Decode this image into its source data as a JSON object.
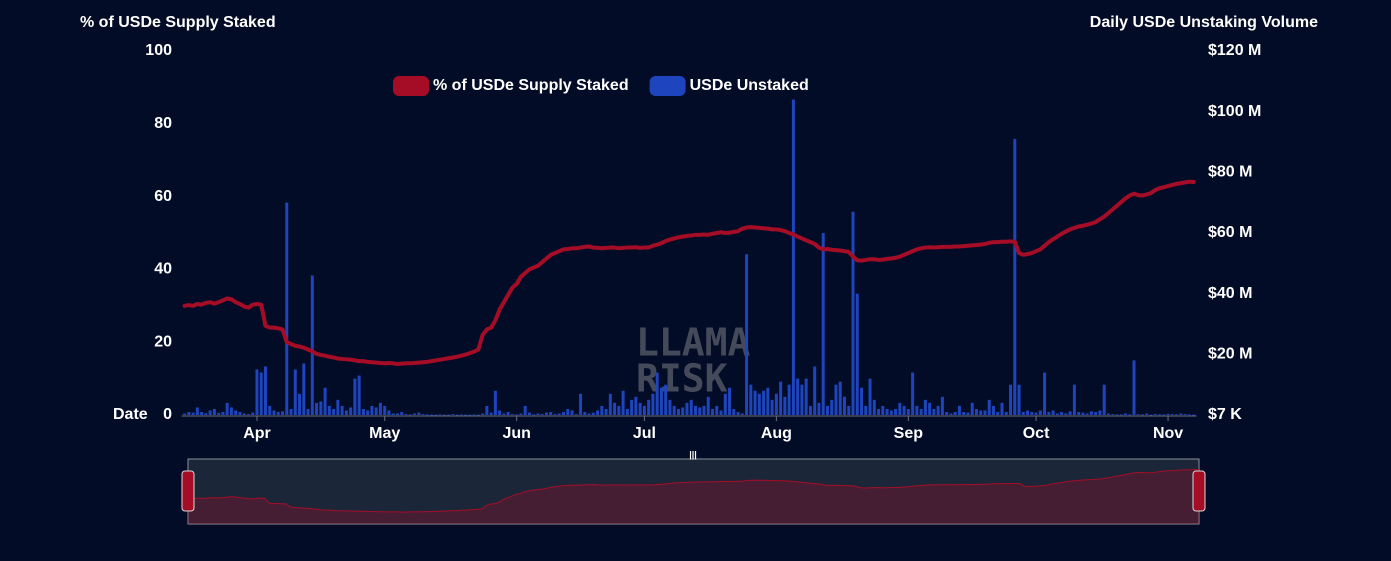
{
  "chart_data": {
    "type": "bar_line",
    "y_title": "% of USDe Supply Staked",
    "y2_title": "Daily USDe Unstaking Volume",
    "x_title": "Date",
    "watermark": [
      "LLAMA",
      "RISK"
    ],
    "navigator_grip": "|||",
    "ylim": [
      0,
      100
    ],
    "yticks": [
      0,
      20,
      40,
      60,
      80,
      100
    ],
    "y2lim": [
      0.007,
      120
    ],
    "y2ticks": [
      {
        "value": 0.007,
        "label": "$7 K"
      },
      {
        "value": 20,
        "label": "$20 M"
      },
      {
        "value": 40,
        "label": "$40 M"
      },
      {
        "value": 60,
        "label": "$60 M"
      },
      {
        "value": 80,
        "label": "$80 M"
      },
      {
        "value": 100,
        "label": "$100 M"
      },
      {
        "value": 120,
        "label": "$120 M"
      }
    ],
    "categories": [
      null,
      null,
      null,
      null,
      null,
      null,
      null,
      null,
      null,
      null,
      null,
      null,
      null,
      null,
      null,
      null,
      null,
      "Apr",
      null,
      null,
      null,
      null,
      null,
      null,
      null,
      null,
      null,
      null,
      null,
      null,
      null,
      null,
      null,
      null,
      null,
      null,
      null,
      null,
      null,
      null,
      null,
      null,
      null,
      null,
      null,
      null,
      null,
      "May",
      null,
      null,
      null,
      null,
      null,
      null,
      null,
      null,
      null,
      null,
      null,
      null,
      null,
      null,
      null,
      null,
      null,
      null,
      null,
      null,
      null,
      null,
      null,
      null,
      null,
      null,
      null,
      null,
      null,
      null,
      "Jun",
      null,
      null,
      null,
      null,
      null,
      null,
      null,
      null,
      null,
      null,
      null,
      null,
      null,
      null,
      null,
      null,
      null,
      null,
      null,
      null,
      null,
      null,
      null,
      null,
      null,
      null,
      null,
      null,
      null,
      "Jul",
      null,
      null,
      null,
      null,
      null,
      null,
      null,
      null,
      null,
      null,
      null,
      null,
      null,
      null,
      null,
      null,
      null,
      null,
      null,
      null,
      null,
      null,
      null,
      null,
      null,
      null,
      null,
      null,
      null,
      null,
      "Aug",
      null,
      null,
      null,
      null,
      null,
      null,
      null,
      null,
      null,
      null,
      null,
      null,
      null,
      null,
      null,
      null,
      null,
      null,
      null,
      null,
      null,
      null,
      null,
      null,
      null,
      null,
      null,
      null,
      null,
      null,
      "Sep",
      null,
      null,
      null,
      null,
      null,
      null,
      null,
      null,
      null,
      null,
      null,
      null,
      null,
      null,
      null,
      null,
      null,
      null,
      null,
      null,
      null,
      null,
      null,
      null,
      null,
      null,
      null,
      null,
      null,
      "Oct",
      null,
      null,
      null,
      null,
      null,
      null,
      null,
      null,
      null,
      null,
      null,
      null,
      null,
      null,
      null,
      null,
      null,
      null,
      null,
      null,
      null,
      null,
      null,
      null,
      null,
      null,
      null,
      null,
      null,
      null,
      "Nov",
      null,
      null,
      null,
      null,
      null,
      null
    ],
    "legend": "top",
    "series": [
      {
        "name": "% of USDe Supply Staked",
        "color": "#a50d27",
        "kind": "line",
        "axis": "y",
        "values": [
          30,
          30.2,
          30,
          30.5,
          30.3,
          30.8,
          31,
          30.6,
          31,
          31.5,
          32,
          31.8,
          31,
          30.5,
          29.8,
          29.5,
          30.3,
          30.5,
          30.3,
          24.5,
          24,
          24,
          23.8,
          23.5,
          20,
          19.5,
          19,
          18.8,
          18.5,
          18,
          17.5,
          16.8,
          16.5,
          16.3,
          16,
          15.8,
          15.5,
          15.4,
          15.3,
          15.2,
          15,
          14.8,
          14.8,
          14.6,
          14.5,
          14.4,
          14.3,
          14.2,
          14.3,
          14.2,
          14,
          14.1,
          14.2,
          14.2,
          14.3,
          14.4,
          14.5,
          14.6,
          14.8,
          15,
          15.2,
          15.4,
          15.6,
          15.8,
          16,
          16.3,
          16.6,
          17,
          17.4,
          18,
          22,
          23.5,
          24,
          26,
          29,
          31,
          33,
          35,
          36,
          38,
          39,
          40,
          40.5,
          41,
          42,
          43,
          44,
          44.5,
          45,
          45.5,
          45.6,
          45.8,
          45.8,
          46,
          46.2,
          46.3,
          46,
          45.9,
          45.8,
          45.9,
          46,
          46,
          45.8,
          45.9,
          46,
          46,
          46.1,
          45.9,
          46,
          46,
          46.5,
          46.8,
          47.2,
          47.8,
          48.2,
          48.5,
          48.8,
          49,
          49.2,
          49.3,
          49.5,
          49.5,
          49.6,
          49.5,
          49.8,
          50,
          50.2,
          50,
          50.1,
          50.3,
          50.5,
          51.2,
          51.5,
          51.6,
          51.5,
          51.4,
          51.3,
          51.2,
          51,
          51,
          50.8,
          50.5,
          50,
          49.6,
          49,
          48.5,
          48,
          47.5,
          47,
          46,
          45.5,
          45.6,
          45.4,
          45.3,
          45.2,
          45,
          44.8,
          43.5,
          42.5,
          42.4,
          42.6,
          42.8,
          42.8,
          42.6,
          42.7,
          42.9,
          43,
          43.2,
          43.5,
          44,
          44.5,
          45,
          45.5,
          45.8,
          46,
          46.1,
          46,
          46.1,
          46.2,
          46.2,
          46.2,
          46.3,
          46.3,
          46.4,
          46.5,
          46.6,
          46.7,
          46.8,
          47,
          47.3,
          47.5,
          47.5,
          47.6,
          47.6,
          47.7,
          47.6,
          44.5,
          44,
          44.2,
          44.5,
          45,
          45.5,
          46.5,
          47.5,
          48.3,
          49,
          49.8,
          50.4,
          51,
          51.4,
          51.8,
          52,
          52.3,
          52.6,
          53,
          53.8,
          54.5,
          55.5,
          56.5,
          57.5,
          58.5,
          59.5,
          60.3,
          60.8,
          60.4,
          60.3,
          60.6,
          61,
          61.8,
          62.3,
          62.6,
          62.9,
          63.2,
          63.5,
          63.7,
          63.9,
          64.1,
          64
        ]
      },
      {
        "name": "USDe Unstaked",
        "color": "#1e45bd",
        "kind": "bar",
        "axis": "y2",
        "values": [
          0.5,
          1,
          0.8,
          2.5,
          1,
          0.6,
          1.5,
          2,
          0.7,
          1,
          4,
          2.5,
          1.5,
          1,
          0.5,
          0.3,
          0.8,
          15,
          14,
          16,
          3,
          1.5,
          1,
          1.2,
          70,
          2,
          15,
          7,
          17,
          2,
          46,
          4,
          4.5,
          9,
          3,
          2,
          5,
          3,
          1.5,
          2.5,
          12,
          13,
          2,
          1.5,
          3,
          2.5,
          4,
          3,
          1.5,
          0.5,
          0.5,
          1,
          0.3,
          0.2,
          0.5,
          0.8,
          0.3,
          0.2,
          0.1,
          0.1,
          0.2,
          0.1,
          0.1,
          0.3,
          0.1,
          0.2,
          0.1,
          0.1,
          0.2,
          0.1,
          0.5,
          3,
          0.8,
          8,
          1.5,
          0.5,
          1,
          0.3,
          0.2,
          0.5,
          3,
          0.8,
          0.2,
          0.5,
          0.3,
          0.8,
          1,
          0.3,
          0.5,
          1,
          2,
          1.5,
          0.3,
          7,
          1,
          0.5,
          0.8,
          1.5,
          3,
          2,
          7,
          4,
          3,
          8,
          2,
          5,
          6,
          4,
          3,
          5,
          7,
          14,
          9,
          10,
          5,
          3,
          2,
          2.5,
          4,
          5,
          3,
          2.5,
          3,
          6,
          2,
          3,
          1.5,
          7,
          9,
          2,
          1,
          0.5,
          53,
          10,
          8,
          7,
          8,
          9,
          5,
          7,
          11,
          6,
          10,
          104,
          12,
          10,
          12,
          3,
          16,
          4,
          60,
          3,
          5,
          10,
          11,
          6,
          3,
          67,
          40,
          9,
          3,
          12,
          5,
          2,
          3,
          2,
          1.5,
          2,
          4,
          3,
          2,
          14,
          3,
          2,
          5,
          4,
          2,
          3,
          6,
          1,
          0.5,
          1,
          3,
          1,
          0.8,
          4,
          2,
          1.5,
          1.5,
          5,
          3,
          1,
          4,
          1,
          10,
          91,
          10,
          1,
          1.5,
          1,
          0.8,
          1.5,
          14,
          1,
          1.5,
          0.5,
          1,
          0.5,
          1.2,
          10,
          1,
          0.8,
          0.5,
          1.2,
          1,
          1.5,
          10,
          0.5,
          0.3,
          0.2,
          0.2,
          0.5,
          0.2,
          18,
          0.3,
          0.2,
          0.5,
          0.1,
          0.3,
          0.2,
          0.2,
          0.4,
          0.3,
          0.2,
          0.5,
          0.3,
          0.2,
          0.1
        ]
      }
    ]
  }
}
